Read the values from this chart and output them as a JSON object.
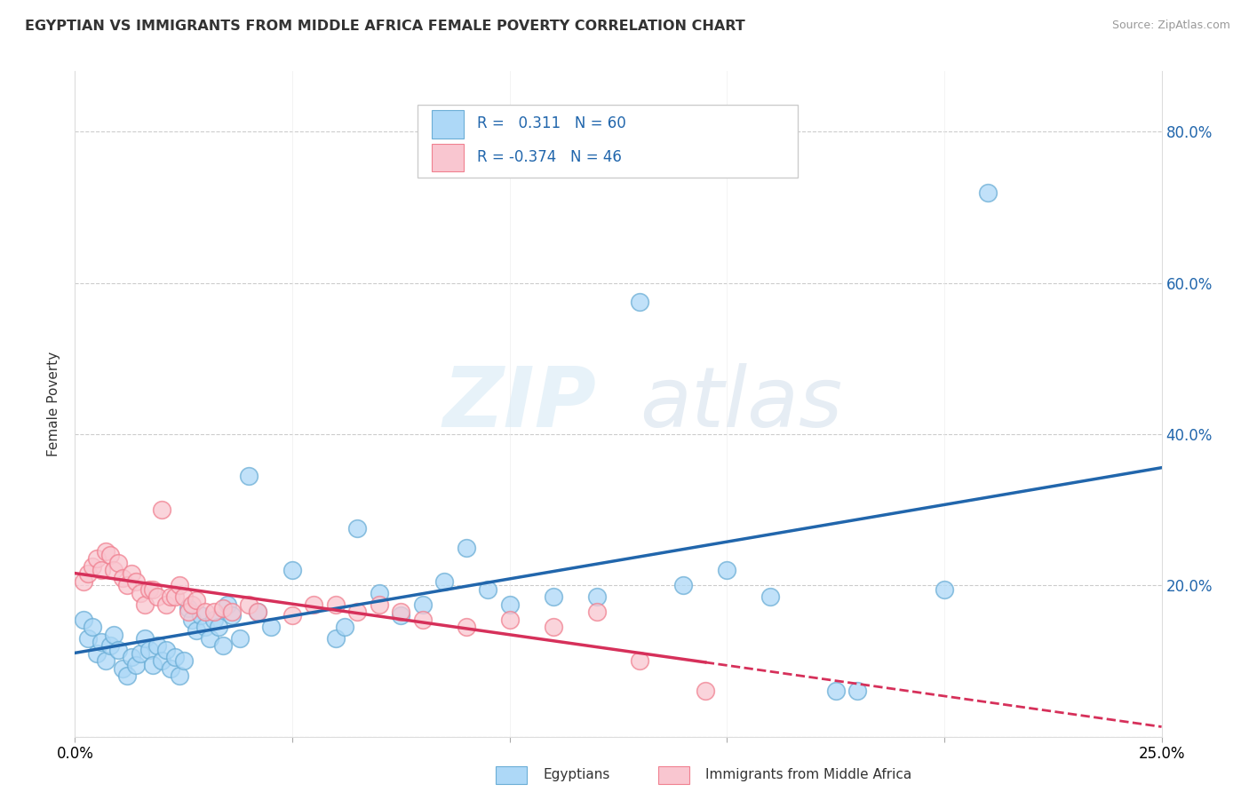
{
  "title": "EGYPTIAN VS IMMIGRANTS FROM MIDDLE AFRICA FEMALE POVERTY CORRELATION CHART",
  "source": "Source: ZipAtlas.com",
  "ylabel": "Female Poverty",
  "xmin": 0.0,
  "xmax": 0.25,
  "ymin": 0.0,
  "ymax": 0.88,
  "yticks": [
    0.0,
    0.2,
    0.4,
    0.6,
    0.8
  ],
  "ytick_labels_right": [
    "",
    "20.0%",
    "40.0%",
    "60.0%",
    "80.0%"
  ],
  "xticks": [
    0.0,
    0.05,
    0.1,
    0.15,
    0.2,
    0.25
  ],
  "xtick_labels": [
    "0.0%",
    "",
    "",
    "",
    "",
    "25.0%"
  ],
  "blue_R": 0.311,
  "blue_N": 60,
  "pink_R": -0.374,
  "pink_N": 46,
  "blue_fill_color": "#ADD8F7",
  "pink_fill_color": "#F9C6D0",
  "blue_edge_color": "#6BAED6",
  "pink_edge_color": "#F08090",
  "blue_line_color": "#2166AC",
  "pink_line_color": "#D6305A",
  "blue_scatter": [
    [
      0.002,
      0.155
    ],
    [
      0.003,
      0.13
    ],
    [
      0.004,
      0.145
    ],
    [
      0.005,
      0.11
    ],
    [
      0.006,
      0.125
    ],
    [
      0.007,
      0.1
    ],
    [
      0.008,
      0.12
    ],
    [
      0.009,
      0.135
    ],
    [
      0.01,
      0.115
    ],
    [
      0.011,
      0.09
    ],
    [
      0.012,
      0.08
    ],
    [
      0.013,
      0.105
    ],
    [
      0.014,
      0.095
    ],
    [
      0.015,
      0.11
    ],
    [
      0.016,
      0.13
    ],
    [
      0.017,
      0.115
    ],
    [
      0.018,
      0.095
    ],
    [
      0.019,
      0.12
    ],
    [
      0.02,
      0.1
    ],
    [
      0.021,
      0.115
    ],
    [
      0.022,
      0.09
    ],
    [
      0.023,
      0.105
    ],
    [
      0.024,
      0.08
    ],
    [
      0.025,
      0.1
    ],
    [
      0.026,
      0.17
    ],
    [
      0.027,
      0.155
    ],
    [
      0.028,
      0.14
    ],
    [
      0.029,
      0.16
    ],
    [
      0.03,
      0.145
    ],
    [
      0.031,
      0.13
    ],
    [
      0.032,
      0.155
    ],
    [
      0.033,
      0.145
    ],
    [
      0.034,
      0.12
    ],
    [
      0.035,
      0.175
    ],
    [
      0.036,
      0.16
    ],
    [
      0.038,
      0.13
    ],
    [
      0.04,
      0.345
    ],
    [
      0.042,
      0.165
    ],
    [
      0.045,
      0.145
    ],
    [
      0.05,
      0.22
    ],
    [
      0.06,
      0.13
    ],
    [
      0.062,
      0.145
    ],
    [
      0.065,
      0.275
    ],
    [
      0.07,
      0.19
    ],
    [
      0.075,
      0.16
    ],
    [
      0.08,
      0.175
    ],
    [
      0.085,
      0.205
    ],
    [
      0.09,
      0.25
    ],
    [
      0.095,
      0.195
    ],
    [
      0.1,
      0.175
    ],
    [
      0.11,
      0.185
    ],
    [
      0.12,
      0.185
    ],
    [
      0.13,
      0.575
    ],
    [
      0.14,
      0.2
    ],
    [
      0.15,
      0.22
    ],
    [
      0.16,
      0.185
    ],
    [
      0.175,
      0.06
    ],
    [
      0.18,
      0.06
    ],
    [
      0.2,
      0.195
    ],
    [
      0.21,
      0.72
    ]
  ],
  "pink_scatter": [
    [
      0.002,
      0.205
    ],
    [
      0.003,
      0.215
    ],
    [
      0.004,
      0.225
    ],
    [
      0.005,
      0.235
    ],
    [
      0.006,
      0.22
    ],
    [
      0.007,
      0.245
    ],
    [
      0.008,
      0.24
    ],
    [
      0.009,
      0.22
    ],
    [
      0.01,
      0.23
    ],
    [
      0.011,
      0.21
    ],
    [
      0.012,
      0.2
    ],
    [
      0.013,
      0.215
    ],
    [
      0.014,
      0.205
    ],
    [
      0.015,
      0.19
    ],
    [
      0.016,
      0.175
    ],
    [
      0.017,
      0.195
    ],
    [
      0.018,
      0.195
    ],
    [
      0.019,
      0.185
    ],
    [
      0.02,
      0.3
    ],
    [
      0.021,
      0.175
    ],
    [
      0.022,
      0.185
    ],
    [
      0.023,
      0.185
    ],
    [
      0.024,
      0.2
    ],
    [
      0.025,
      0.185
    ],
    [
      0.026,
      0.165
    ],
    [
      0.027,
      0.175
    ],
    [
      0.028,
      0.18
    ],
    [
      0.03,
      0.165
    ],
    [
      0.032,
      0.165
    ],
    [
      0.034,
      0.17
    ],
    [
      0.036,
      0.165
    ],
    [
      0.04,
      0.175
    ],
    [
      0.042,
      0.165
    ],
    [
      0.05,
      0.16
    ],
    [
      0.055,
      0.175
    ],
    [
      0.06,
      0.175
    ],
    [
      0.065,
      0.165
    ],
    [
      0.07,
      0.175
    ],
    [
      0.075,
      0.165
    ],
    [
      0.08,
      0.155
    ],
    [
      0.09,
      0.145
    ],
    [
      0.1,
      0.155
    ],
    [
      0.11,
      0.145
    ],
    [
      0.12,
      0.165
    ],
    [
      0.13,
      0.1
    ],
    [
      0.145,
      0.06
    ]
  ],
  "watermark_zip": "ZIP",
  "watermark_atlas": "atlas",
  "background_color": "#FFFFFF",
  "grid_color": "#CCCCCC",
  "legend_blue_text": "R =   0.311   N = 60",
  "legend_pink_text": "R = -0.374   N = 46",
  "bottom_legend_blue": "Egyptians",
  "bottom_legend_pink": "Immigrants from Middle Africa"
}
